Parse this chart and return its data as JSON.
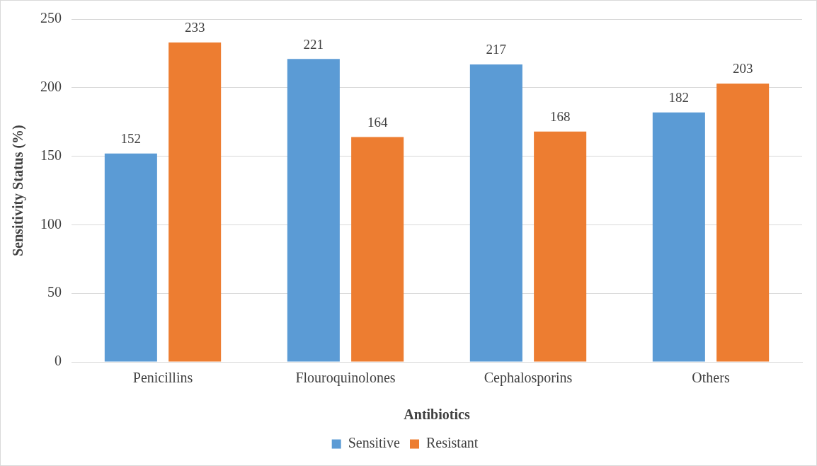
{
  "chart_data": {
    "type": "bar",
    "xlabel": "Antibiotics",
    "ylabel": "Sensitivity Status (%)",
    "categories": [
      "Penicillins",
      "Flouroquinolones",
      "Cephalosporins",
      "Others"
    ],
    "series": [
      {
        "name": "Sensitive",
        "color": "#5b9bd5",
        "values": [
          152,
          221,
          217,
          182
        ]
      },
      {
        "name": "Resistant",
        "color": "#ed7d31",
        "values": [
          233,
          164,
          168,
          203
        ]
      }
    ],
    "ylim": [
      0,
      250
    ],
    "yticks": [
      0,
      50,
      100,
      150,
      200,
      250
    ],
    "grid": "y",
    "legend": "bottom",
    "data_labels": true
  }
}
